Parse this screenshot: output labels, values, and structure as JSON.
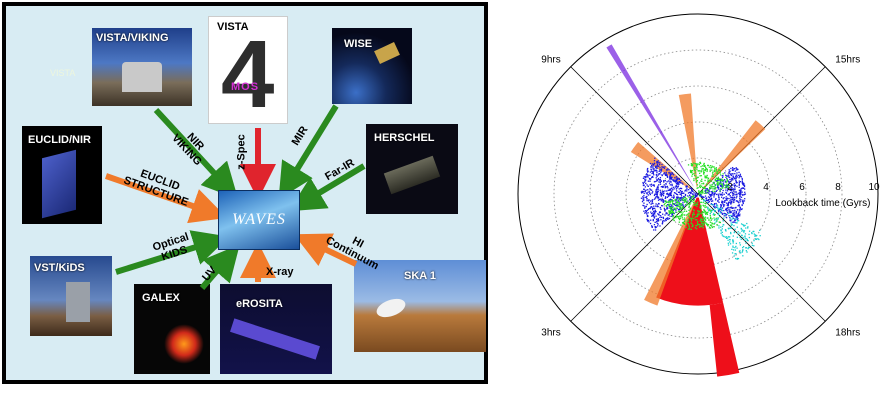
{
  "facilities": {
    "vista_viking": "VISTA/VIKING",
    "vista4": "VISTA",
    "vista_logo_text": "4",
    "mos_text": "MOS",
    "wise": "WISE",
    "euclid": "EUCLID/NIR",
    "herschel": "HERSCHEL",
    "vst": "VST/KiDS",
    "galex": "GALEX",
    "erosita": "eROSITA",
    "ska": "SKA 1",
    "faint_vista": "VISTA"
  },
  "center": {
    "label": "WAVES"
  },
  "arrows": {
    "nir_viking": "NIR\nVIKING",
    "zspec": "z-Spec",
    "mir": "MIR",
    "euclid_structure": "EUCLID\nSTRUCTURE",
    "far_ir": "Far-IR",
    "optical_kids": "Optical\nKIDS",
    "uv": "UV",
    "xray": "X-ray",
    "hi_continuum": "HI\nContinuum"
  },
  "colors": {
    "green_arrow": "#2a8a1f",
    "red_arrow": "#e0242d",
    "orange_arrow": "#f07a2a",
    "red_wedge": "#ee0f1a",
    "orange_wedge": "#f07a2a",
    "blue_points": "#1a1ae0",
    "green_points": "#27e027",
    "purple_points": "#7a2be0",
    "cyan_points": "#1ad0d0"
  },
  "chart_data": {
    "type": "polar",
    "radial_axis_label": "Lookback time (Gyrs)",
    "radial_ticks": [
      "2",
      "4",
      "6",
      "8",
      "10"
    ],
    "radial_tick_values": [
      2,
      4,
      6,
      8,
      10
    ],
    "hour_labels": [
      {
        "text": "9hrs",
        "angle_deg": 135
      },
      {
        "text": "15hrs",
        "angle_deg": 45
      },
      {
        "text": "3hrs",
        "angle_deg": 225
      },
      {
        "text": "18hrs",
        "angle_deg": 315
      }
    ],
    "wedges": [
      {
        "name": "",
        "color": "#ee0f1a",
        "ra_start_deg": 248,
        "ra_end_deg": 283,
        "r_inner": 0.2,
        "r_outer": 6.2
      },
      {
        "name": "",
        "color": "#ee0f1a",
        "ra_start_deg": 276,
        "ra_end_deg": 283,
        "r_inner": 6.2,
        "r_outer": 10.2
      },
      {
        "name": "",
        "color": "#f07a2a",
        "ra_start_deg": 94,
        "ra_end_deg": 101,
        "r_inner": 0.4,
        "r_outer": 5.6
      },
      {
        "name": "",
        "color": "#f07a2a",
        "ra_start_deg": 44,
        "ra_end_deg": 52,
        "r_inner": 0.4,
        "r_outer": 5.2
      },
      {
        "name": "",
        "color": "#f07a2a",
        "ra_start_deg": 139,
        "ra_end_deg": 148,
        "r_inner": 0.4,
        "r_outer": 4.4
      },
      {
        "name": "",
        "color": "#f07a2a",
        "ra_start_deg": 243,
        "ra_end_deg": 250,
        "r_inner": 0.4,
        "r_outer": 6.6
      },
      {
        "name": "",
        "color": "#7a2be0",
        "ra_start_deg": 120,
        "ra_end_deg": 122,
        "r_inner": 0.5,
        "r_outer": 9.6
      }
    ],
    "point_clouds": [
      {
        "color": "#1a1ae0",
        "ra_center_deg": 180,
        "ra_spread_deg": 40,
        "r_max": 3.2,
        "count": 700
      },
      {
        "color": "#1a1ae0",
        "ra_center_deg": 0,
        "ra_spread_deg": 40,
        "r_max": 2.6,
        "count": 500
      },
      {
        "color": "#27e027",
        "ra_center_deg": 250,
        "ra_spread_deg": 60,
        "r_max": 2.0,
        "count": 350
      },
      {
        "color": "#27e027",
        "ra_center_deg": 60,
        "ra_spread_deg": 50,
        "r_max": 1.8,
        "count": 250
      },
      {
        "color": "#1ad0d0",
        "ra_center_deg": 315,
        "ra_spread_deg": 15,
        "r_max": 4.2,
        "count": 200
      }
    ]
  }
}
